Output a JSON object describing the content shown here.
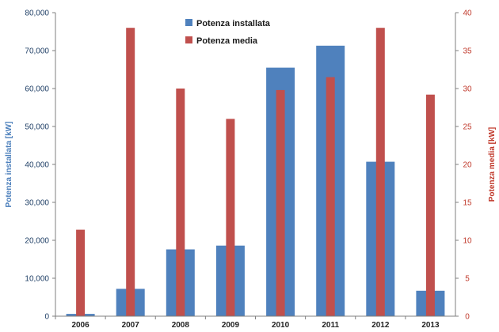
{
  "chart_data": {
    "type": "bar",
    "categories": [
      "2006",
      "2007",
      "2008",
      "2009",
      "2010",
      "2011",
      "2012",
      "2013"
    ],
    "series": [
      {
        "name": "Potenza installata",
        "axis": "left",
        "color": "#4f81bd",
        "values": [
          600,
          7200,
          17600,
          18600,
          65500,
          71300,
          40700,
          6700
        ]
      },
      {
        "name": "Potenza media",
        "axis": "right",
        "color": "#c0504d",
        "values": [
          11.4,
          38,
          30,
          26,
          29.8,
          31.5,
          38,
          29.2
        ]
      }
    ],
    "ylabel_left": "Potenza installata [kW]",
    "ylabel_right": "Potenza media [kW]",
    "ylim_left": [
      0,
      80000
    ],
    "ylim_right": [
      0,
      40
    ],
    "yticks_left": [
      "0",
      "10,000",
      "20,000",
      "30,000",
      "40,000",
      "50,000",
      "60,000",
      "70,000",
      "80,000"
    ],
    "yticks_right": [
      "0",
      "5",
      "10",
      "15",
      "20",
      "25",
      "30",
      "35",
      "40"
    ],
    "grid": false,
    "legend_position": "top-center"
  }
}
